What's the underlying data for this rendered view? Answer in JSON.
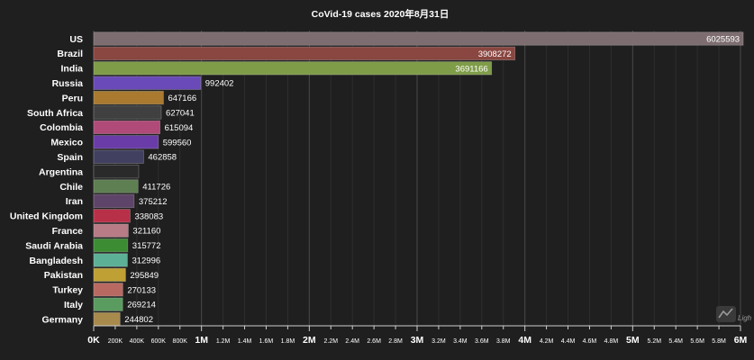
{
  "chart_data": {
    "type": "bar",
    "orientation": "horizontal",
    "title": "CoVid-19 cases 2020年8月31日",
    "categories": [
      "US",
      "Brazil",
      "India",
      "Russia",
      "Peru",
      "South Africa",
      "Colombia",
      "Mexico",
      "Spain",
      "Argentina",
      "Chile",
      "Iran",
      "United Kingdom",
      "France",
      "Saudi Arabia",
      "Bangladesh",
      "Pakistan",
      "Turkey",
      "Italy",
      "Germany"
    ],
    "values": [
      6025593,
      3908272,
      3691166,
      992402,
      647166,
      627041,
      615094,
      599560,
      462858,
      417735,
      411726,
      375212,
      338083,
      321160,
      315772,
      312996,
      295849,
      270133,
      269214,
      244802
    ],
    "value_labels": [
      "6025593",
      "3908272",
      "3691166",
      "992402",
      "647166",
      "627041",
      "615094",
      "599560",
      "462858",
      "",
      "411726",
      "375212",
      "338083",
      "321160",
      "315772",
      "312996",
      "295849",
      "270133",
      "269214",
      "244802"
    ],
    "value_label_inside_bar": [
      true,
      true,
      true,
      false,
      false,
      false,
      false,
      false,
      false,
      false,
      false,
      false,
      false,
      false,
      false,
      false,
      false,
      false,
      false,
      false
    ],
    "colors": [
      "#7d6d70",
      "#8a4640",
      "#7f9c48",
      "#6a49b8",
      "#a97a30",
      "#404040",
      "#b04a78",
      "#6a3ca8",
      "#424060",
      "#2a2a2a",
      "#5e7f52",
      "#5e4468",
      "#b83048",
      "#b87c86",
      "#3c8c34",
      "#5cb096",
      "#bfa034",
      "#b86a62",
      "#5a9c60",
      "#a88a4c"
    ],
    "xlim": [
      0,
      6000000
    ],
    "ticks": [
      "0K",
      "200K",
      "400K",
      "600K",
      "800K",
      "1M",
      "1.2M",
      "1.4M",
      "1.6M",
      "1.8M",
      "2M",
      "2.2M",
      "2.4M",
      "2.6M",
      "2.8M",
      "3M",
      "3.2M",
      "3.4M",
      "3.6M",
      "3.8M",
      "4M",
      "4.2M",
      "4.4M",
      "4.6M",
      "4.8M",
      "5M",
      "5.2M",
      "5.4M",
      "5.6M",
      "5.8M",
      "6M"
    ],
    "tick_values": [
      0,
      200000,
      400000,
      600000,
      800000,
      1000000,
      1200000,
      1400000,
      1600000,
      1800000,
      2000000,
      2200000,
      2400000,
      2600000,
      2800000,
      3000000,
      3200000,
      3400000,
      3600000,
      3800000,
      4000000,
      4200000,
      4400000,
      4600000,
      4800000,
      5000000,
      5200000,
      5400000,
      5600000,
      5800000,
      6000000
    ],
    "major_ticks": [
      "0K",
      "1M",
      "2M",
      "3M",
      "4M",
      "5M",
      "6M"
    ],
    "grid": true,
    "xlabel": "",
    "ylabel": ""
  },
  "watermark": {
    "label": "Ligh",
    "icon": "lightweight-charts-logo-icon"
  },
  "colors": {
    "background": "#1f1f1f",
    "grid_major": "#4a4a4a",
    "grid_minor": "#2e2e2e",
    "axis": "#cfcfcf"
  }
}
